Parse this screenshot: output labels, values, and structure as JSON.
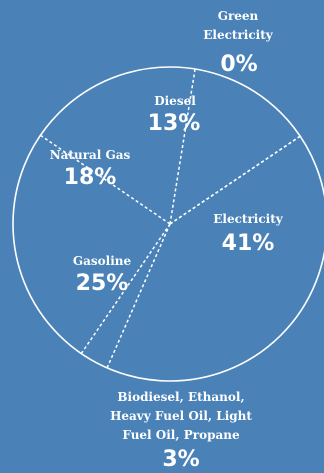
{
  "colors": {
    "background": "#4a82b8",
    "foreground": "#ffffff"
  },
  "chart_data": {
    "type": "pie",
    "title": "",
    "legend": "none",
    "slices": [
      {
        "label": "Electricity",
        "value": 41
      },
      {
        "label": "Biodiesel, Ethanol, Heavy Fuel Oil, Light Fuel Oil, Propane",
        "value": 3
      },
      {
        "label": "Gasoline",
        "value": 25
      },
      {
        "label": "Natural Gas",
        "value": 18
      },
      {
        "label": "Diesel",
        "value": 13
      },
      {
        "label": "Green Electricity",
        "value": 0
      }
    ],
    "labels": {
      "green_electricity_line1": "Green",
      "green_electricity_line2": "Electricity",
      "green_electricity_pct": "0%",
      "diesel_name": "Diesel",
      "diesel_pct": "13%",
      "natural_gas_name": "Natural Gas",
      "natural_gas_pct": "18%",
      "electricity_name": "Electricity",
      "electricity_pct": "41%",
      "gasoline_name": "Gasoline",
      "gasoline_pct": "25%",
      "other_line1": "Biodiesel, Ethanol,",
      "other_line2": "Heavy Fuel Oil, Light",
      "other_line3": "Fuel Oil, Propane",
      "other_pct": "3%"
    }
  }
}
